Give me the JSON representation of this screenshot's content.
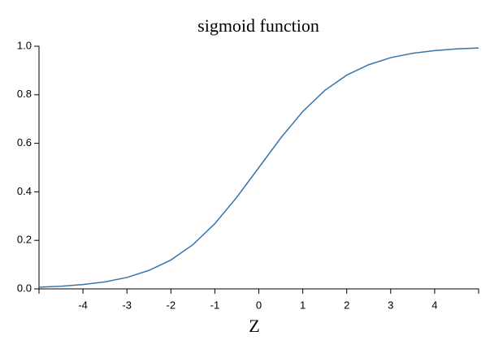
{
  "chart_data": {
    "type": "line",
    "title": "sigmoid function",
    "x_label": "Z",
    "x": [
      -5,
      -4.5,
      -4,
      -3.5,
      -3,
      -2.5,
      -2,
      -1.5,
      -1,
      -0.5,
      0,
      0.5,
      1,
      1.5,
      2,
      2.5,
      3,
      3.5,
      4,
      4.5,
      5
    ],
    "series": [
      {
        "name": "sigmoid",
        "color": "#3b74a8",
        "values": [
          0.007,
          0.011,
          0.018,
          0.029,
          0.047,
          0.076,
          0.119,
          0.182,
          0.269,
          0.378,
          0.5,
          0.622,
          0.731,
          0.818,
          0.881,
          0.924,
          0.953,
          0.971,
          0.982,
          0.989,
          0.993
        ]
      }
    ],
    "xlim": [
      -5,
      5
    ],
    "xticks": [
      -4,
      -3,
      -2,
      -1,
      0,
      1,
      2,
      3,
      4
    ],
    "ylim": [
      0,
      1
    ],
    "yticks": [
      {
        "value": 0,
        "label": "0.0"
      },
      0.2,
      0.4,
      0.6,
      0.8,
      {
        "value": 1,
        "label": "1.0"
      }
    ]
  }
}
